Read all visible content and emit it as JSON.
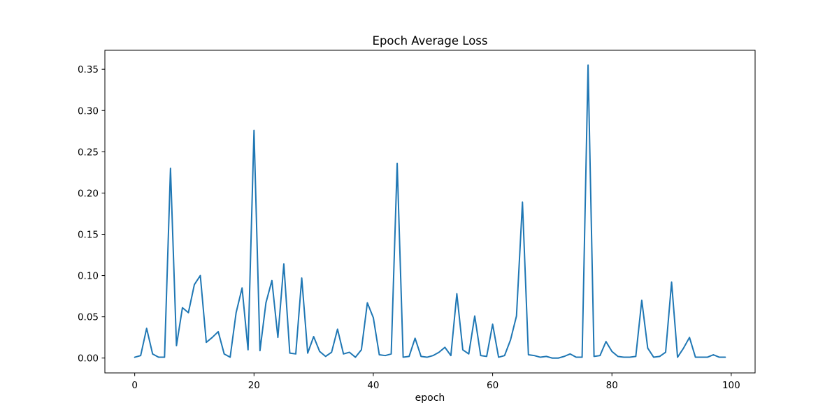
{
  "chart_data": {
    "type": "line",
    "title": "Epoch Average Loss",
    "xlabel": "epoch",
    "ylabel": "",
    "xlim": [
      -5.0,
      104.0
    ],
    "ylim": [
      -0.018,
      0.373
    ],
    "xticks": [
      0,
      20,
      40,
      60,
      80,
      100
    ],
    "xtick_labels": [
      "0",
      "20",
      "40",
      "60",
      "80",
      "100"
    ],
    "yticks": [
      0.0,
      0.05,
      0.1,
      0.15,
      0.2,
      0.25,
      0.3,
      0.35
    ],
    "ytick_labels": [
      "0.00",
      "0.05",
      "0.10",
      "0.15",
      "0.20",
      "0.25",
      "0.30",
      "0.35"
    ],
    "grid": false,
    "series": [
      {
        "color": "#1f77b4",
        "x": [
          0,
          1,
          2,
          3,
          4,
          5,
          6,
          7,
          8,
          9,
          10,
          11,
          12,
          13,
          14,
          15,
          16,
          17,
          18,
          19,
          20,
          21,
          22,
          23,
          24,
          25,
          26,
          27,
          28,
          29,
          30,
          31,
          32,
          33,
          34,
          35,
          36,
          37,
          38,
          39,
          40,
          41,
          42,
          43,
          44,
          45,
          46,
          47,
          48,
          49,
          50,
          51,
          52,
          53,
          54,
          55,
          56,
          57,
          58,
          59,
          60,
          61,
          62,
          63,
          64,
          65,
          66,
          67,
          68,
          69,
          70,
          71,
          72,
          73,
          74,
          75,
          76,
          77,
          78,
          79,
          80,
          81,
          82,
          83,
          84,
          85,
          86,
          87,
          88,
          89,
          90,
          91,
          92,
          93,
          94,
          95,
          96,
          97,
          98,
          99
        ],
        "values": [
          0.001,
          0.003,
          0.036,
          0.005,
          0.001,
          0.001,
          0.23,
          0.015,
          0.061,
          0.055,
          0.089,
          0.1,
          0.019,
          0.025,
          0.032,
          0.005,
          0.001,
          0.055,
          0.085,
          0.01,
          0.276,
          0.009,
          0.067,
          0.094,
          0.025,
          0.114,
          0.006,
          0.005,
          0.097,
          0.006,
          0.026,
          0.008,
          0.002,
          0.007,
          0.035,
          0.005,
          0.007,
          0.001,
          0.01,
          0.067,
          0.049,
          0.004,
          0.003,
          0.005,
          0.236,
          0.001,
          0.002,
          0.024,
          0.002,
          0.001,
          0.003,
          0.007,
          0.013,
          0.003,
          0.078,
          0.01,
          0.005,
          0.051,
          0.003,
          0.002,
          0.041,
          0.001,
          0.003,
          0.022,
          0.051,
          0.189,
          0.004,
          0.003,
          0.001,
          0.002,
          0.0,
          0.0,
          0.002,
          0.005,
          0.001,
          0.001,
          0.355,
          0.002,
          0.003,
          0.02,
          0.008,
          0.002,
          0.001,
          0.001,
          0.002,
          0.07,
          0.012,
          0.001,
          0.002,
          0.007,
          0.092,
          0.001,
          0.012,
          0.025,
          0.001,
          0.001,
          0.001,
          0.004,
          0.001,
          0.001
        ]
      }
    ]
  }
}
